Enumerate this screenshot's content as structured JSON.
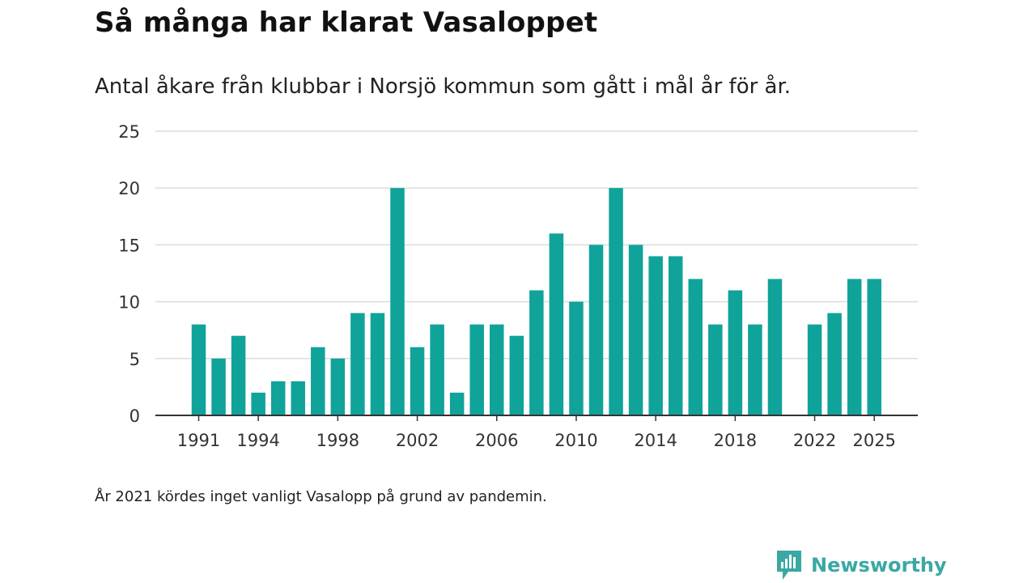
{
  "title": "Så många har klarat Vasaloppet",
  "subtitle": "Antal åkare från klubbar i Norsjö kommun som gått i mål år för år.",
  "footnote": "År 2021 kördes inget vanligt Vasalopp på grund av pandemin.",
  "brand": {
    "name": "Newsworthy",
    "icon": "newsworthy-logo-icon",
    "color": "#3aa8a3"
  },
  "chart_data": {
    "type": "bar",
    "x": [
      1991,
      1992,
      1993,
      1994,
      1995,
      1996,
      1997,
      1998,
      1999,
      2000,
      2001,
      2002,
      2003,
      2004,
      2005,
      2006,
      2007,
      2008,
      2009,
      2010,
      2011,
      2012,
      2013,
      2014,
      2015,
      2016,
      2017,
      2018,
      2019,
      2020,
      2021,
      2022,
      2023,
      2024,
      2025
    ],
    "values": [
      8,
      5,
      7,
      2,
      3,
      3,
      6,
      5,
      9,
      9,
      20,
      6,
      8,
      2,
      8,
      8,
      7,
      11,
      16,
      10,
      15,
      20,
      15,
      14,
      14,
      12,
      8,
      11,
      8,
      12,
      null,
      8,
      9,
      12,
      12
    ],
    "x_ticks": [
      "1991",
      "1994",
      "1998",
      "2002",
      "2006",
      "2010",
      "2014",
      "2018",
      "2022",
      "2025"
    ],
    "y_ticks": [
      "0",
      "5",
      "10",
      "15",
      "20",
      "25"
    ],
    "ylim": [
      0,
      25
    ],
    "xlabel": "",
    "ylabel": "",
    "bar_color": "#0fa39a",
    "grid": true
  }
}
